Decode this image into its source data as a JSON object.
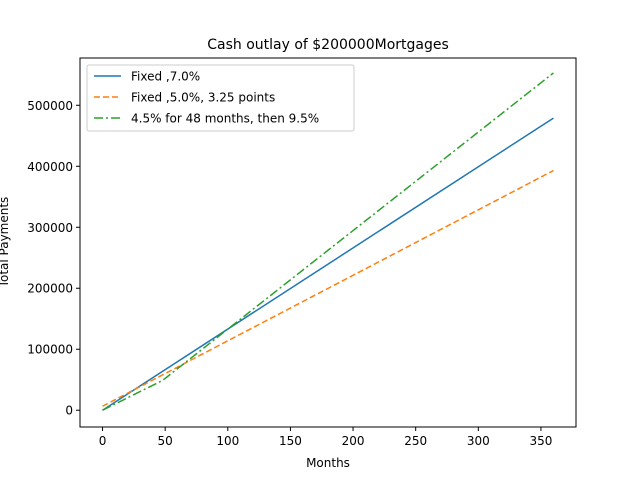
{
  "chart_data": {
    "type": "line",
    "title": "Cash outlay of $200000Mortgages",
    "xlabel": "Months",
    "ylabel": "Total Payments",
    "xlim": [
      -18,
      378
    ],
    "ylim": [
      -27500,
      577500
    ],
    "xticks": [
      0,
      50,
      100,
      150,
      200,
      250,
      300,
      350
    ],
    "yticks": [
      0,
      100000,
      200000,
      300000,
      400000,
      500000
    ],
    "grid": false,
    "legend_position": "top-left",
    "series": [
      {
        "name": "Fixed ,7.0%",
        "color": "#1f77b4",
        "dash": "solid",
        "x": [
          0,
          360
        ],
        "y": [
          0,
          479000
        ]
      },
      {
        "name": "Fixed ,5.0%, 3.25 points",
        "color": "#ff7f0e",
        "dash": "dashed",
        "x": [
          0,
          360
        ],
        "y": [
          6500,
          393000
        ]
      },
      {
        "name": "4.5% for 48 months, then 9.5%",
        "color": "#2ca02c",
        "dash": "dashdot",
        "x": [
          0,
          48,
          360
        ],
        "y": [
          0,
          49000,
          553000
        ]
      }
    ]
  }
}
